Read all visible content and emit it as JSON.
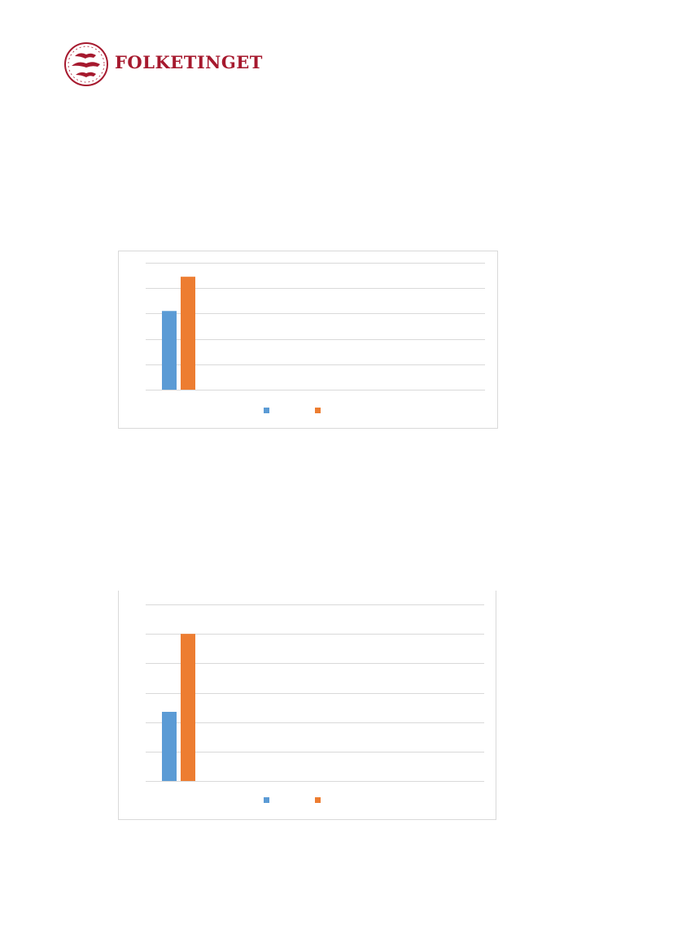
{
  "header": {
    "logo_text": "FOLKETINGET",
    "brand_color": "#a6192e"
  },
  "chart_data": [
    {
      "type": "bar",
      "categories": [
        ""
      ],
      "series": [
        {
          "values": [
            3.1
          ],
          "color": "#5b9bd5"
        },
        {
          "values": [
            4.45
          ],
          "color": "#ed7d31"
        }
      ],
      "ylim": [
        0,
        5
      ],
      "grid": true,
      "legend": "bottom",
      "title": "",
      "xlabel": "",
      "ylabel": ""
    },
    {
      "type": "bar",
      "categories": [
        ""
      ],
      "series": [
        {
          "values": [
            2.35
          ],
          "color": "#5b9bd5"
        },
        {
          "values": [
            5.0
          ],
          "color": "#ed7d31"
        }
      ],
      "ylim": [
        0,
        6
      ],
      "grid": true,
      "legend": "bottom",
      "title": "",
      "xlabel": "",
      "ylabel": ""
    }
  ]
}
